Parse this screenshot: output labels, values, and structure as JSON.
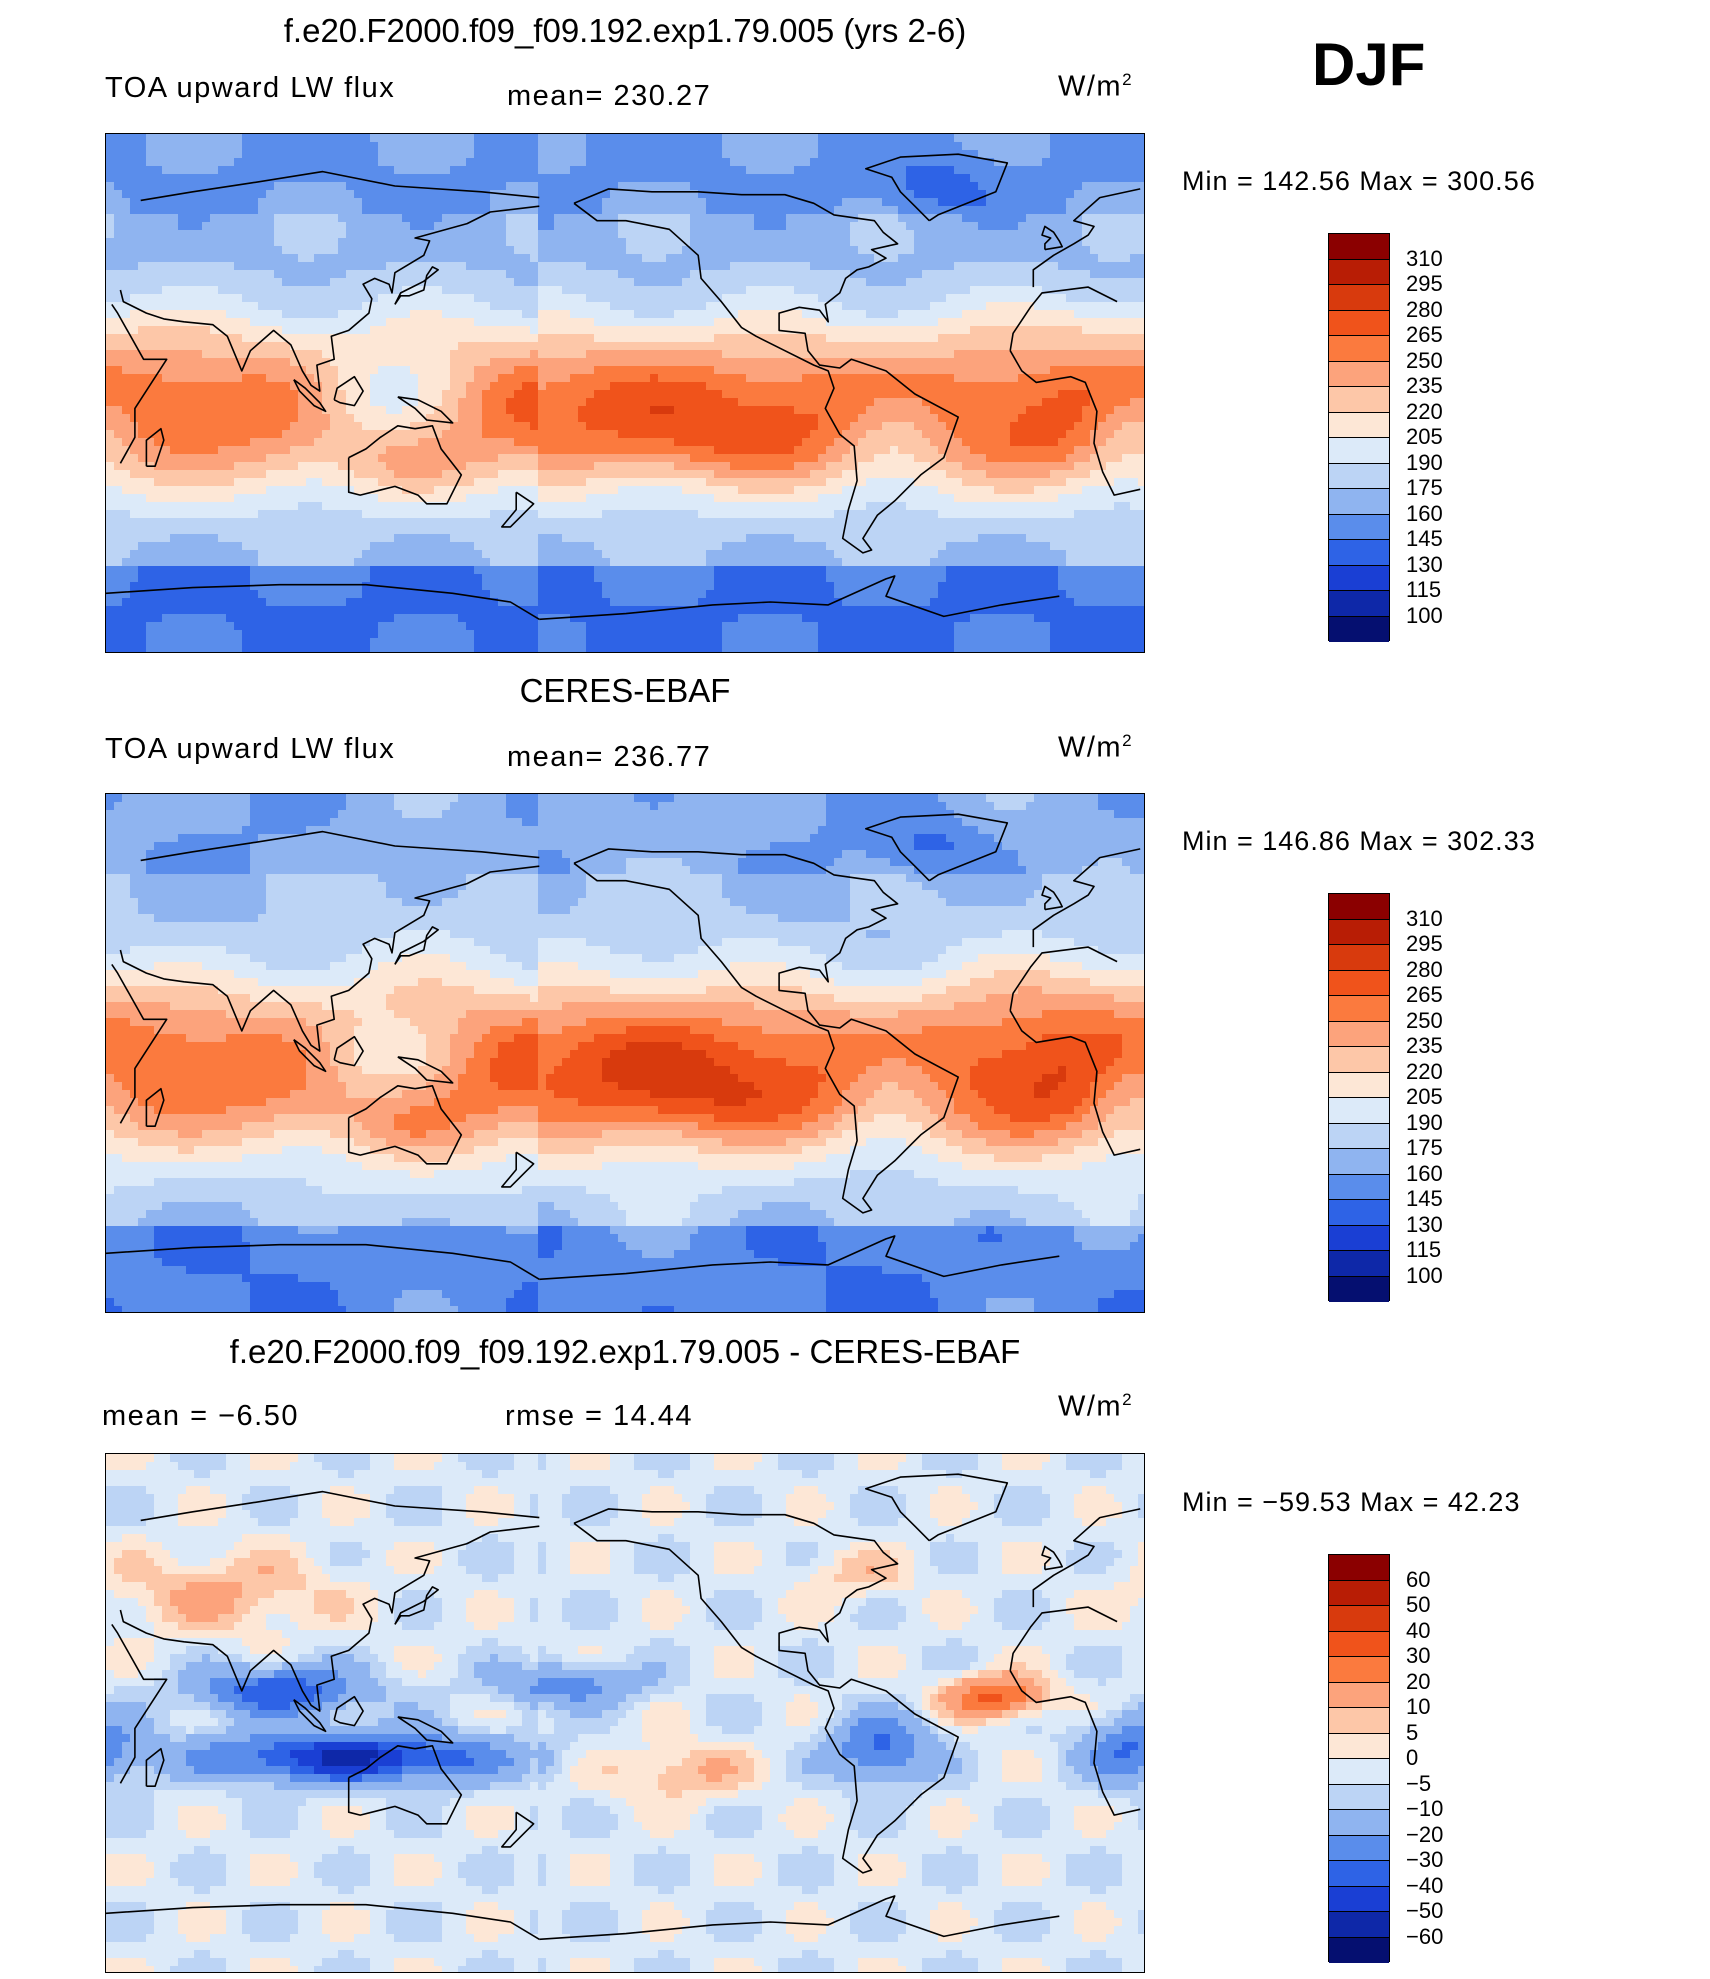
{
  "season": "DJF",
  "panels": [
    {
      "title": "f.e20.F2000.f09_f09.192.exp1.79.005 (yrs 2-6)",
      "left_label": "TOA upward  LW flux",
      "center_label": "mean=  230.27",
      "units": "W/m",
      "units_sup": "2",
      "minmax": "Min  =  142.56  Max  =  300.56",
      "kind": "abs"
    },
    {
      "title": "CERES-EBAF",
      "left_label": "TOA upward  LW flux",
      "center_label": "mean=  236.77",
      "units": "W/m",
      "units_sup": "2",
      "minmax": "Min  =  146.86  Max  =  302.33",
      "kind": "obs"
    },
    {
      "title": "f.e20.F2000.f09_f09.192.exp1.79.005 - CERES-EBAF",
      "left_label": "mean  =    −6.50",
      "center_label": "rmse  =    14.44",
      "units": "W/m",
      "units_sup": "2",
      "minmax": "Min  =  −59.53  Max  =    42.23",
      "kind": "diff"
    }
  ],
  "colorbar_abs": {
    "labels": [
      "310",
      "295",
      "280",
      "265",
      "250",
      "235",
      "220",
      "205",
      "190",
      "175",
      "160",
      "145",
      "130",
      "115",
      "100"
    ],
    "colors": [
      "#8b0000",
      "#b81d05",
      "#d83a0d",
      "#f0531b",
      "#fb7a3e",
      "#fca37c",
      "#fdc7a8",
      "#fde7d6",
      "#dceaf9",
      "#bcd4f5",
      "#8fb4f0",
      "#5a8deb",
      "#2e63e6",
      "#1a3fd4",
      "#0e28a8",
      "#050f70"
    ]
  },
  "colorbar_diff": {
    "labels": [
      "60",
      "50",
      "40",
      "30",
      "20",
      "10",
      "5",
      "0",
      "−5",
      "−10",
      "−20",
      "−30",
      "−40",
      "−50",
      "−60"
    ],
    "colors": [
      "#8b0000",
      "#b81d05",
      "#d83a0d",
      "#f0531b",
      "#fb7a3e",
      "#fca37c",
      "#fdc7a8",
      "#fde7d6",
      "#dceaf9",
      "#bcd4f5",
      "#8fb4f0",
      "#5a8deb",
      "#2e63e6",
      "#1a3fd4",
      "#0e28a8",
      "#050f70"
    ]
  }
}
